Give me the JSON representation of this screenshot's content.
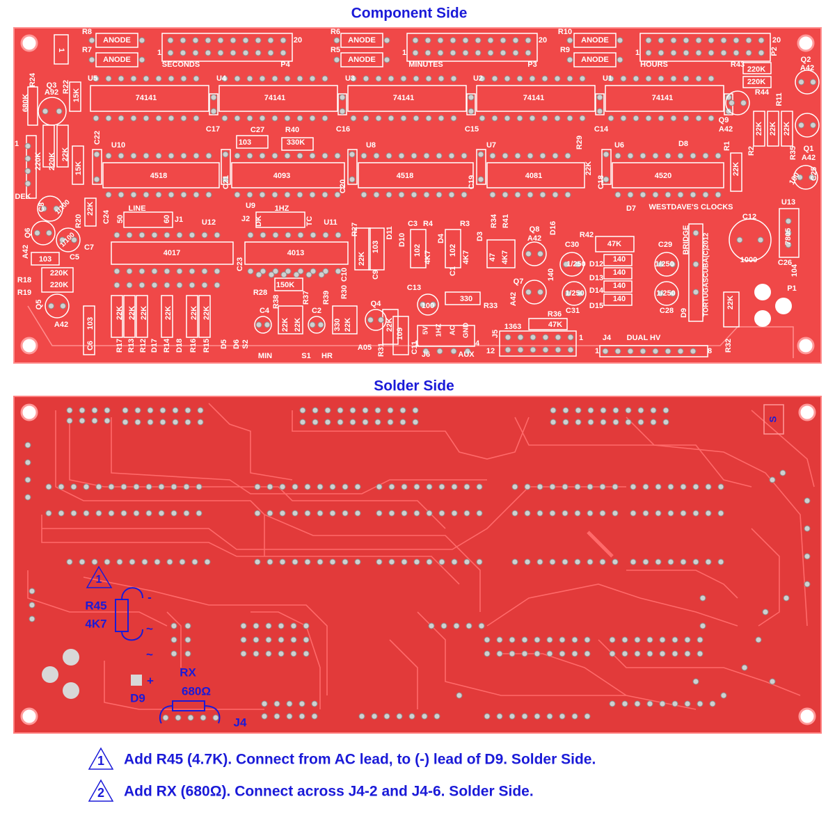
{
  "component_side": {
    "title": "Component Side",
    "labels": [
      "R8",
      "R7",
      "ANODE",
      "ANODE",
      "1",
      "20",
      "SECONDS",
      "P4",
      "R6",
      "R5",
      "ANODE",
      "ANODE",
      "1",
      "20",
      "MINUTES",
      "P3",
      "R10",
      "R9",
      "ANODE",
      "ANODE",
      "1",
      "20",
      "HOURS",
      "R43",
      "P2",
      "U5",
      "U4",
      "U3",
      "U2",
      "U1",
      "74141",
      "74141",
      "74141",
      "74141",
      "74141",
      "C17",
      "C16",
      "C15",
      "C14",
      "C27",
      "R40",
      "103",
      "330K",
      "D8",
      "U10",
      "U8",
      "U7",
      "U6",
      "C22",
      "R29",
      "4518",
      "4093",
      "4518",
      "4081",
      "4520",
      "C21",
      "C20",
      "C19",
      "C18",
      "22K",
      "R1",
      "22K",
      "R2",
      "R35",
      "C25",
      "100",
      "Q2",
      "A42",
      "220K",
      "220K",
      "R44",
      "R11",
      "Q9",
      "A42",
      "22K",
      "22K",
      "22K",
      "Q1",
      "A42",
      "WESTDAVE'S CLOCKS",
      "D7",
      "U13",
      "C12",
      "1000",
      "7805",
      "C26",
      "104",
      "BRIDGE",
      "TORTUGASCUBA(C)2012",
      "P1",
      "R24",
      "680K",
      "Q3",
      "A92",
      "R22",
      "15K",
      "1",
      "220K",
      "220K",
      "22K",
      "15K",
      "DEK",
      "C8",
      "1/100",
      "22K",
      "R20",
      "Q6",
      "A42",
      "1/100",
      "C7",
      "C5",
      "103",
      "R18",
      "220K",
      "220K",
      "R19",
      "Q5",
      "A42",
      "C24",
      "LINE",
      "50",
      "60",
      "J1",
      "U12",
      "J2",
      "1HZ",
      "DK",
      "TC",
      "U11",
      "4017",
      "4013",
      "C23",
      "R27",
      "22K",
      "103",
      "C9",
      "D11",
      "D10",
      "C3",
      "102",
      "R4",
      "4K7",
      "D4",
      "C1",
      "102",
      "R3",
      "4K7",
      "D3",
      "R34",
      "R41",
      "47",
      "4K7",
      "Q8",
      "A42",
      "D16",
      "C30",
      "R42",
      "47K",
      "C29",
      "140",
      "1/250",
      "1/250",
      "140",
      "140",
      "140",
      "140",
      "D12",
      "D13",
      "D14",
      "D15",
      "1/250",
      "1/250",
      "Q7",
      "A42",
      "C31",
      "C28",
      "D9",
      "C13",
      "100",
      "330",
      "R33",
      "R36",
      "47K",
      "1363",
      "J5",
      "12",
      "1",
      "J4",
      "DUAL HV",
      "1",
      "8",
      "R32",
      "22K",
      "R28",
      "150K",
      "C4",
      "R38",
      "R37",
      "C2",
      "R39",
      "R30",
      "C10",
      "22K",
      "22K",
      "330",
      "22K",
      "Q4",
      "22K",
      "A05",
      "R31",
      "109",
      "C11",
      "5V",
      "1HZ",
      "AC",
      "GND",
      "1",
      "4",
      "J6",
      "AUX",
      "22K",
      "22K",
      "22K",
      "22K",
      "22K",
      "22K",
      "R17",
      "R13",
      "R12",
      "D17",
      "R14",
      "D18",
      "R16",
      "R15",
      "D5",
      "D6",
      "S2",
      "MIN",
      "S1",
      "HR",
      "C6",
      "103",
      "U9",
      "1"
    ]
  },
  "solder_side": {
    "title": "Solder Side",
    "labels": [
      "R45",
      "4K7",
      "-",
      "~",
      "~",
      "+",
      "D9",
      "RX",
      "680Ω",
      "J4",
      "S",
      "1"
    ]
  },
  "notes": [
    {
      "marker": "1",
      "text": "Add R45 (4.7K). Connect from AC lead, to (-) lead of D9. Solder Side."
    },
    {
      "marker": "2",
      "text": "Add RX (680Ω). Connect across J4-2 and J4-6. Solder Side."
    }
  ]
}
